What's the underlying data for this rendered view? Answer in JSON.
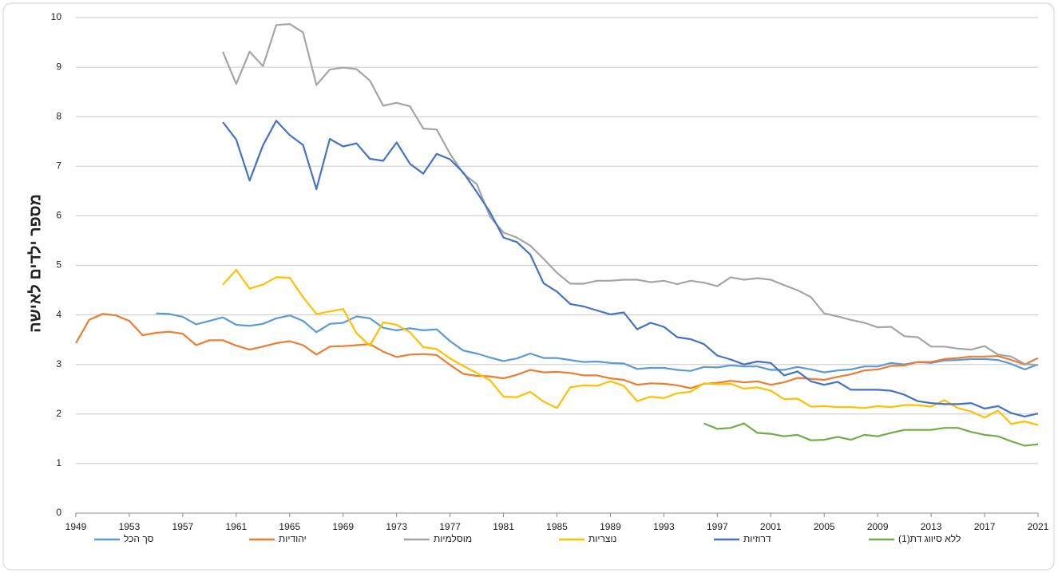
{
  "chart_data": {
    "type": "line",
    "ylabel": "מספר ילדים לאישה",
    "x": [
      1949,
      1950,
      1951,
      1952,
      1953,
      1954,
      1955,
      1956,
      1957,
      1958,
      1959,
      1960,
      1961,
      1962,
      1963,
      1964,
      1965,
      1966,
      1967,
      1968,
      1969,
      1970,
      1971,
      1972,
      1973,
      1974,
      1975,
      1976,
      1977,
      1978,
      1979,
      1980,
      1981,
      1982,
      1983,
      1984,
      1985,
      1986,
      1987,
      1988,
      1989,
      1990,
      1991,
      1992,
      1993,
      1994,
      1995,
      1996,
      1997,
      1998,
      1999,
      2000,
      2001,
      2002,
      2003,
      2004,
      2005,
      2006,
      2007,
      2008,
      2009,
      2010,
      2011,
      2012,
      2013,
      2014,
      2015,
      2016,
      2017,
      2018,
      2019,
      2020,
      2021
    ],
    "xlim": [
      1949,
      2021
    ],
    "xticks": [
      1949,
      1953,
      1957,
      1961,
      1965,
      1969,
      1973,
      1977,
      1981,
      1985,
      1989,
      1993,
      1997,
      2001,
      2005,
      2009,
      2013,
      2017,
      2021
    ],
    "ylim": [
      0,
      10
    ],
    "yticks": [
      0,
      1,
      2,
      3,
      4,
      5,
      6,
      7,
      8,
      9,
      10
    ],
    "grid": true,
    "legend": "bottom",
    "series": [
      {
        "name": "סך הכל",
        "color": "#5b9bd5",
        "values": [
          null,
          null,
          null,
          null,
          null,
          null,
          4.03,
          4.02,
          3.96,
          3.81,
          3.88,
          3.95,
          3.8,
          3.78,
          3.82,
          3.93,
          3.99,
          3.88,
          3.65,
          3.82,
          3.84,
          3.97,
          3.93,
          3.74,
          3.69,
          3.73,
          3.69,
          3.71,
          3.47,
          3.28,
          3.22,
          3.14,
          3.07,
          3.12,
          3.22,
          3.13,
          3.13,
          3.09,
          3.05,
          3.06,
          3.03,
          3.02,
          2.91,
          2.93,
          2.93,
          2.89,
          2.87,
          2.95,
          2.94,
          2.98,
          2.96,
          2.96,
          2.89,
          2.89,
          2.95,
          2.9,
          2.84,
          2.88,
          2.9,
          2.96,
          2.96,
          3.03,
          3.0,
          3.05,
          3.03,
          3.08,
          3.09,
          3.11,
          3.11,
          3.09,
          3.01,
          2.9,
          3.0
        ]
      },
      {
        "name": "יהודיות",
        "color": "#ed7d31",
        "values": [
          3.43,
          3.9,
          4.02,
          3.99,
          3.88,
          3.59,
          3.64,
          3.66,
          3.62,
          3.39,
          3.49,
          3.49,
          3.38,
          3.3,
          3.36,
          3.43,
          3.47,
          3.39,
          3.2,
          3.36,
          3.37,
          3.39,
          3.41,
          3.26,
          3.15,
          3.2,
          3.21,
          3.19,
          2.99,
          2.81,
          2.77,
          2.76,
          2.72,
          2.79,
          2.89,
          2.84,
          2.85,
          2.83,
          2.78,
          2.78,
          2.72,
          2.69,
          2.59,
          2.62,
          2.61,
          2.58,
          2.52,
          2.61,
          2.63,
          2.67,
          2.64,
          2.66,
          2.59,
          2.64,
          2.73,
          2.71,
          2.69,
          2.75,
          2.8,
          2.88,
          2.9,
          2.97,
          2.98,
          3.05,
          3.05,
          3.11,
          3.13,
          3.16,
          3.16,
          3.17,
          3.09,
          3.0,
          3.13
        ]
      },
      {
        "name": "מוסלמיות",
        "color": "#a5a5a5",
        "values": [
          null,
          null,
          null,
          null,
          null,
          null,
          null,
          null,
          null,
          null,
          null,
          9.31,
          8.66,
          9.31,
          9.02,
          9.85,
          9.87,
          9.7,
          8.64,
          8.95,
          8.99,
          8.96,
          8.73,
          8.22,
          8.28,
          8.21,
          7.76,
          7.74,
          7.25,
          6.85,
          6.64,
          5.98,
          5.66,
          5.56,
          5.4,
          5.13,
          4.85,
          4.63,
          4.63,
          4.69,
          4.69,
          4.71,
          4.71,
          4.66,
          4.69,
          4.62,
          4.69,
          4.65,
          4.58,
          4.76,
          4.71,
          4.74,
          4.71,
          4.6,
          4.5,
          4.36,
          4.03,
          3.97,
          3.9,
          3.84,
          3.75,
          3.76,
          3.57,
          3.55,
          3.36,
          3.36,
          3.32,
          3.3,
          3.37,
          3.2,
          3.16,
          3.01,
          2.99
        ]
      },
      {
        "name": "נוצריות",
        "color": "#ffc000",
        "values": [
          null,
          null,
          null,
          null,
          null,
          null,
          null,
          null,
          null,
          null,
          null,
          4.61,
          4.91,
          4.53,
          4.61,
          4.76,
          4.75,
          4.36,
          4.02,
          4.07,
          4.12,
          3.63,
          3.38,
          3.85,
          3.8,
          3.65,
          3.35,
          3.31,
          3.12,
          2.97,
          2.83,
          2.68,
          2.35,
          2.34,
          2.45,
          2.25,
          2.12,
          2.54,
          2.58,
          2.57,
          2.66,
          2.57,
          2.26,
          2.35,
          2.32,
          2.42,
          2.45,
          2.62,
          2.6,
          2.61,
          2.51,
          2.54,
          2.47,
          2.3,
          2.31,
          2.15,
          2.16,
          2.14,
          2.14,
          2.12,
          2.16,
          2.14,
          2.18,
          2.18,
          2.15,
          2.28,
          2.12,
          2.05,
          1.93,
          2.07,
          1.8,
          1.85,
          1.78
        ]
      },
      {
        "name": "דרוזיות",
        "color": "#4472c4",
        "values": [
          null,
          null,
          null,
          null,
          null,
          null,
          null,
          null,
          null,
          null,
          null,
          7.89,
          7.54,
          6.71,
          7.42,
          7.92,
          7.63,
          7.43,
          6.54,
          7.55,
          7.4,
          7.46,
          7.15,
          7.11,
          7.48,
          7.05,
          6.85,
          7.25,
          7.14,
          6.87,
          6.48,
          6.07,
          5.56,
          5.47,
          5.22,
          4.64,
          4.47,
          4.22,
          4.17,
          4.09,
          4.01,
          4.05,
          3.71,
          3.84,
          3.76,
          3.55,
          3.51,
          3.41,
          3.18,
          3.1,
          3.0,
          3.06,
          3.03,
          2.78,
          2.86,
          2.66,
          2.59,
          2.65,
          2.49,
          2.49,
          2.49,
          2.47,
          2.39,
          2.26,
          2.22,
          2.2,
          2.2,
          2.22,
          2.11,
          2.16,
          2.02,
          1.95,
          2.01
        ]
      },
      {
        "name": "ללא סיווג דת(1)",
        "color": "#70ad47",
        "values": [
          null,
          null,
          null,
          null,
          null,
          null,
          null,
          null,
          null,
          null,
          null,
          null,
          null,
          null,
          null,
          null,
          null,
          null,
          null,
          null,
          null,
          null,
          null,
          null,
          null,
          null,
          null,
          null,
          null,
          null,
          null,
          null,
          null,
          null,
          null,
          null,
          null,
          null,
          null,
          null,
          null,
          null,
          null,
          null,
          null,
          null,
          null,
          1.81,
          1.7,
          1.72,
          1.81,
          1.62,
          1.6,
          1.55,
          1.58,
          1.47,
          1.48,
          1.54,
          1.48,
          1.58,
          1.55,
          1.62,
          1.68,
          1.68,
          1.68,
          1.72,
          1.72,
          1.64,
          1.58,
          1.55,
          1.45,
          1.36,
          1.39
        ]
      }
    ]
  }
}
